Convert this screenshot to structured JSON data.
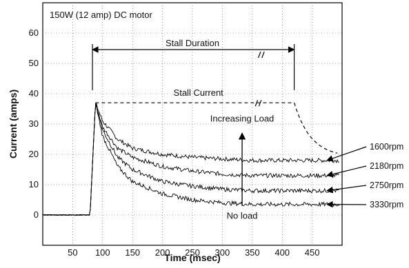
{
  "chart_data": {
    "type": "line",
    "title": "150W (12 amp) DC motor",
    "xlabel": "Time (msec)",
    "ylabel": "Current (amps)",
    "xlim": [
      0,
      500
    ],
    "ylim": [
      -10,
      70
    ],
    "x_ticks": [
      50,
      100,
      150,
      200,
      250,
      300,
      350,
      400,
      450
    ],
    "y_ticks": [
      0,
      10,
      20,
      30,
      40,
      50,
      60
    ],
    "grid": "dotted",
    "stall_current": 37,
    "rise_time": 80,
    "peak_time": 88,
    "annotations": {
      "stall_duration": "Stall Duration",
      "stall_current": "Stall Current",
      "increasing_load": "Increasing Load",
      "no_load": "No load"
    },
    "series": [
      {
        "name": "1600rpm",
        "x": [
          0,
          79,
          88,
          100,
          125,
          150,
          200,
          250,
          300,
          350,
          400,
          450,
          495
        ],
        "y": [
          0,
          0,
          37,
          31,
          25,
          22,
          20,
          19,
          18.5,
          18,
          18,
          18,
          18
        ]
      },
      {
        "name": "2180rpm",
        "x": [
          0,
          79,
          88,
          100,
          125,
          150,
          200,
          250,
          300,
          350,
          400,
          450,
          495
        ],
        "y": [
          0,
          0,
          37,
          29,
          22,
          19,
          16,
          14.5,
          13.5,
          13,
          13,
          13,
          13
        ]
      },
      {
        "name": "2750rpm",
        "x": [
          0,
          79,
          88,
          100,
          125,
          150,
          200,
          250,
          300,
          350,
          400,
          450,
          495
        ],
        "y": [
          0,
          0,
          37,
          28,
          19,
          15,
          11,
          9.5,
          8.5,
          8,
          8,
          8,
          8
        ]
      },
      {
        "name": "3330rpm",
        "x": [
          0,
          79,
          88,
          100,
          125,
          150,
          200,
          250,
          300,
          350,
          400,
          450,
          495
        ],
        "y": [
          0,
          0,
          37,
          26,
          16,
          11,
          7,
          5,
          4,
          3.5,
          3.5,
          3.5,
          3.5
        ]
      }
    ]
  }
}
